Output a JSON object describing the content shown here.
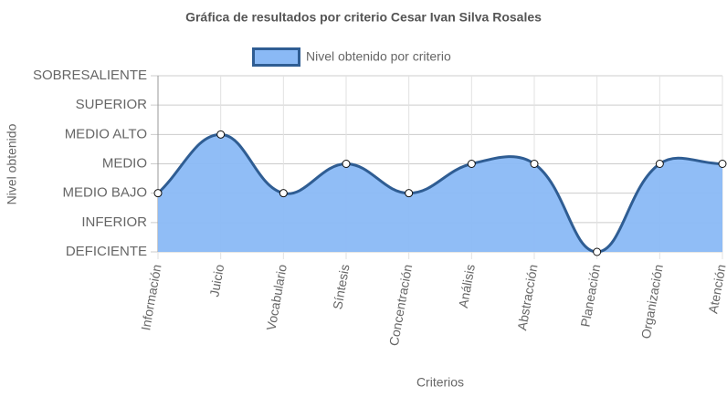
{
  "chart_data": {
    "type": "line",
    "title": "Gráfica de resultados por criterio Cesar Ivan Silva Rosales",
    "x_label": "Criterios",
    "y_label": "Nivel obtenido",
    "categories": [
      "Información",
      "Juicio",
      "Vocabulario",
      "Síntesis",
      "Concentración",
      "Análisis",
      "Abstracción",
      "Planeación",
      "Organización",
      "Atención"
    ],
    "series": [
      {
        "name": "Nivel obtenido por criterio",
        "color": "#2f5d93",
        "fill": "#8ab9f5",
        "values": [
          2,
          4,
          2,
          3,
          2,
          3,
          3,
          0,
          3,
          3
        ]
      }
    ],
    "ylim": [
      0,
      6
    ],
    "yticks": [
      {
        "value": 0,
        "label": "DEFICIENTE"
      },
      {
        "value": 1,
        "label": "INFERIOR"
      },
      {
        "value": 2,
        "label": "MEDIO BAJO"
      },
      {
        "value": 3,
        "label": "MEDIO"
      },
      {
        "value": 4,
        "label": "MEDIO ALTO"
      },
      {
        "value": 5,
        "label": "SUPERIOR"
      },
      {
        "value": 6,
        "label": "SOBRESALIENTE"
      }
    ],
    "grid": true,
    "legend": "top"
  }
}
